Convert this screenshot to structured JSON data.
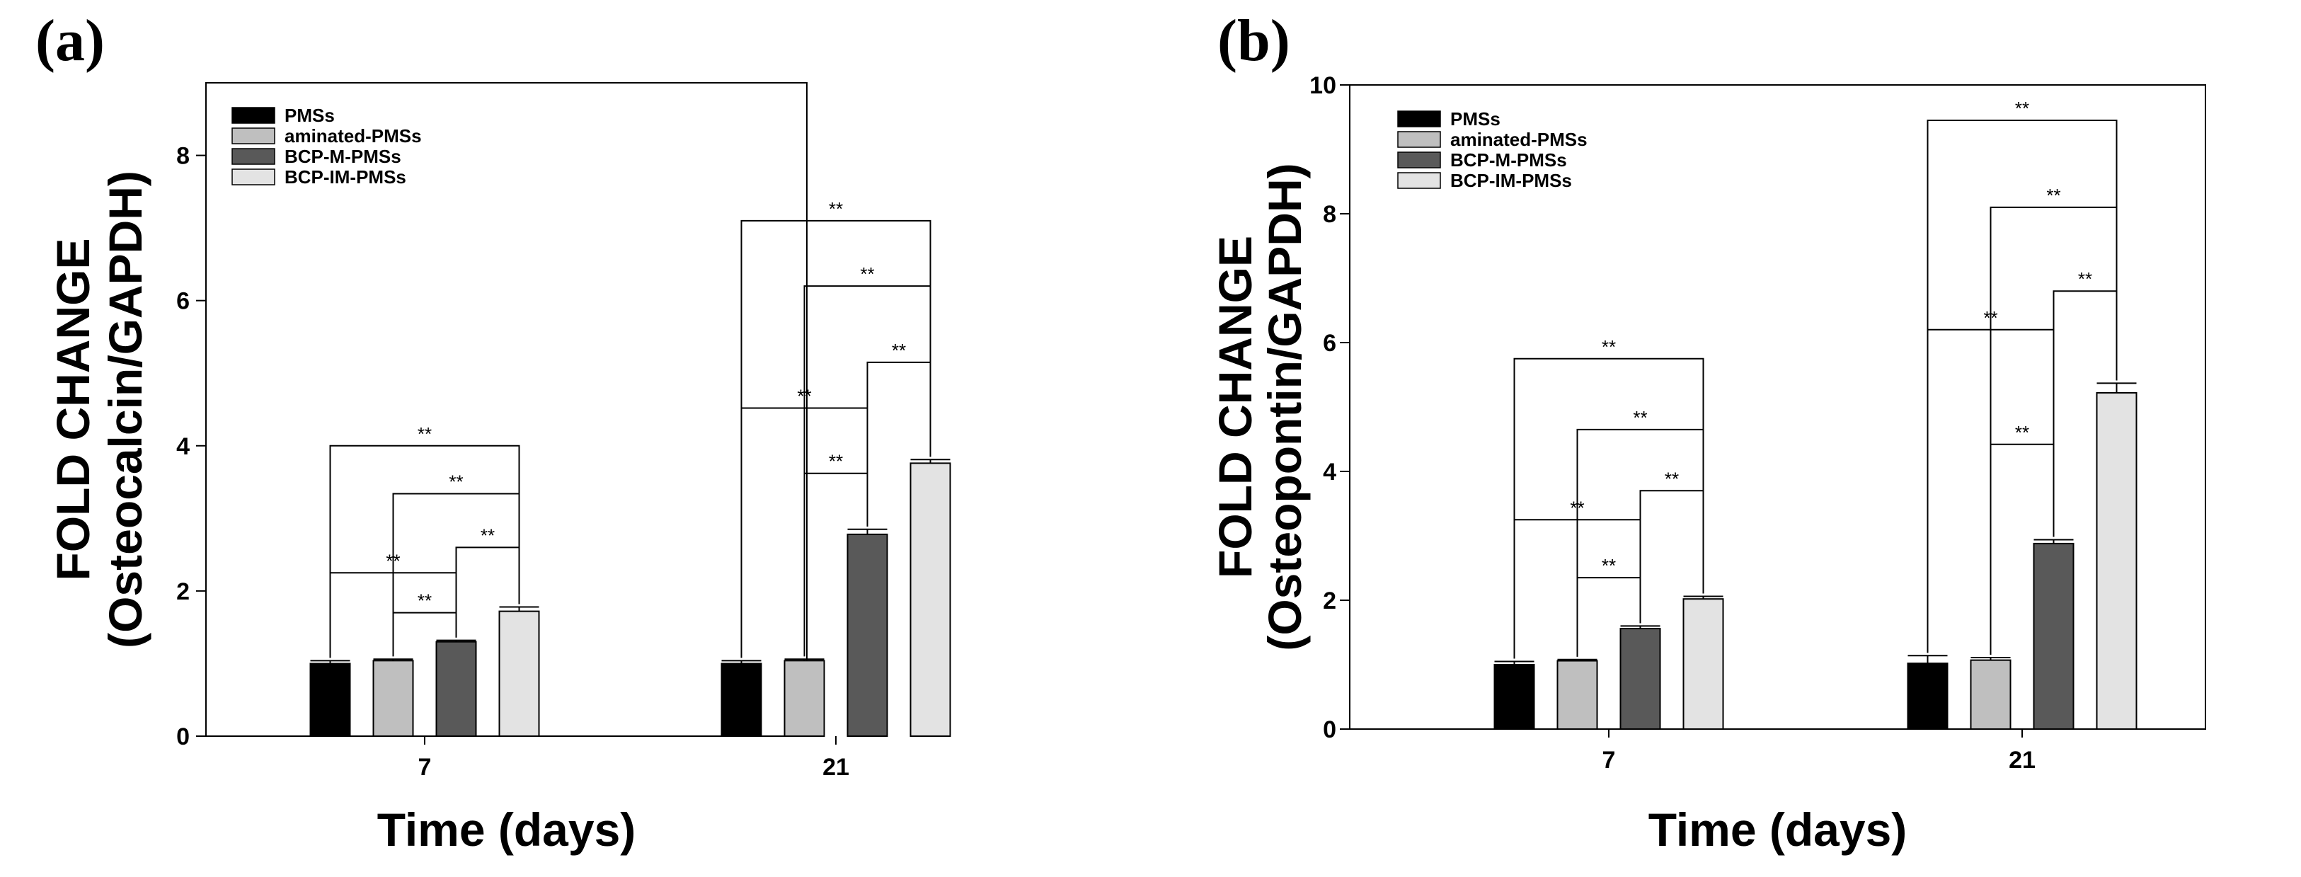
{
  "chart_data": [
    {
      "type": "bar",
      "panel_label": "(a)",
      "title": "",
      "xlabel": "Time (days)",
      "ylabel_line1": "FOLD CHANGE",
      "ylabel_line2": "(Osteocalcin/GAPDH)",
      "categories": [
        "7",
        "21"
      ],
      "ylim": [
        0,
        9
      ],
      "yticks": [
        0,
        2,
        4,
        6,
        8
      ],
      "grid": false,
      "legend_position": "top-left",
      "series": [
        {
          "name": "PMSs",
          "color": "#000000",
          "values": [
            1.0,
            1.0
          ],
          "errors": [
            0.04,
            0.04
          ]
        },
        {
          "name": "aminated-PMSs",
          "color": "#bfbfbf",
          "values": [
            1.04,
            1.04
          ],
          "errors": [
            0.02,
            0.02
          ]
        },
        {
          "name": "BCP-M-PMSs",
          "color": "#595959",
          "values": [
            1.3,
            2.78
          ],
          "errors": [
            0.02,
            0.07
          ]
        },
        {
          "name": "BCP-IM-PMSs",
          "color": "#e3e3e3",
          "values": [
            1.72,
            3.76
          ],
          "errors": [
            0.06,
            0.05
          ]
        }
      ],
      "significance": [
        {
          "group": 0,
          "from": 0,
          "to": 3,
          "level": 4.0,
          "label": "**"
        },
        {
          "group": 0,
          "from": 1,
          "to": 3,
          "level": 3.34,
          "label": "**"
        },
        {
          "group": 0,
          "from": 2,
          "to": 3,
          "level": 2.6,
          "label": "**"
        },
        {
          "group": 0,
          "from": 0,
          "to": 2,
          "level": 2.25,
          "label": "**"
        },
        {
          "group": 0,
          "from": 1,
          "to": 2,
          "level": 1.7,
          "label": "**"
        },
        {
          "group": 1,
          "from": 0,
          "to": 3,
          "level": 7.1,
          "label": "**"
        },
        {
          "group": 1,
          "from": 1,
          "to": 3,
          "level": 6.2,
          "label": "**"
        },
        {
          "group": 1,
          "from": 2,
          "to": 3,
          "level": 5.15,
          "label": "**"
        },
        {
          "group": 1,
          "from": 0,
          "to": 2,
          "level": 4.52,
          "label": "**"
        },
        {
          "group": 1,
          "from": 1,
          "to": 2,
          "level": 3.62,
          "label": "**"
        }
      ]
    },
    {
      "type": "bar",
      "panel_label": "(b)",
      "title": "",
      "xlabel": "Time (days)",
      "ylabel_line1": "FOLD CHANGE",
      "ylabel_line2": "(Osteopontin/GAPDH)",
      "categories": [
        "7",
        "21"
      ],
      "ylim": [
        0,
        10
      ],
      "yticks": [
        0,
        2,
        4,
        6,
        8,
        10
      ],
      "grid": false,
      "legend_position": "top-left",
      "series": [
        {
          "name": "PMSs",
          "color": "#000000",
          "values": [
            1.0,
            1.02
          ],
          "errors": [
            0.05,
            0.12
          ]
        },
        {
          "name": "aminated-PMSs",
          "color": "#bfbfbf",
          "values": [
            1.06,
            1.07
          ],
          "errors": [
            0.02,
            0.04
          ]
        },
        {
          "name": "BCP-M-PMSs",
          "color": "#595959",
          "values": [
            1.56,
            2.88
          ],
          "errors": [
            0.04,
            0.06
          ]
        },
        {
          "name": "BCP-IM-PMSs",
          "color": "#e3e3e3",
          "values": [
            2.02,
            5.22
          ],
          "errors": [
            0.04,
            0.15
          ]
        }
      ],
      "significance": [
        {
          "group": 0,
          "from": 0,
          "to": 3,
          "level": 5.75,
          "label": "**"
        },
        {
          "group": 0,
          "from": 1,
          "to": 3,
          "level": 4.65,
          "label": "**"
        },
        {
          "group": 0,
          "from": 2,
          "to": 3,
          "level": 3.7,
          "label": "**"
        },
        {
          "group": 0,
          "from": 0,
          "to": 2,
          "level": 3.25,
          "label": "**"
        },
        {
          "group": 0,
          "from": 1,
          "to": 2,
          "level": 2.35,
          "label": "**"
        },
        {
          "group": 1,
          "from": 0,
          "to": 3,
          "level": 9.45,
          "label": "**"
        },
        {
          "group": 1,
          "from": 1,
          "to": 3,
          "level": 8.1,
          "label": "**"
        },
        {
          "group": 1,
          "from": 2,
          "to": 3,
          "level": 6.8,
          "label": "**"
        },
        {
          "group": 1,
          "from": 0,
          "to": 2,
          "level": 6.2,
          "label": "**"
        },
        {
          "group": 1,
          "from": 1,
          "to": 2,
          "level": 4.42,
          "label": "**"
        }
      ]
    }
  ]
}
